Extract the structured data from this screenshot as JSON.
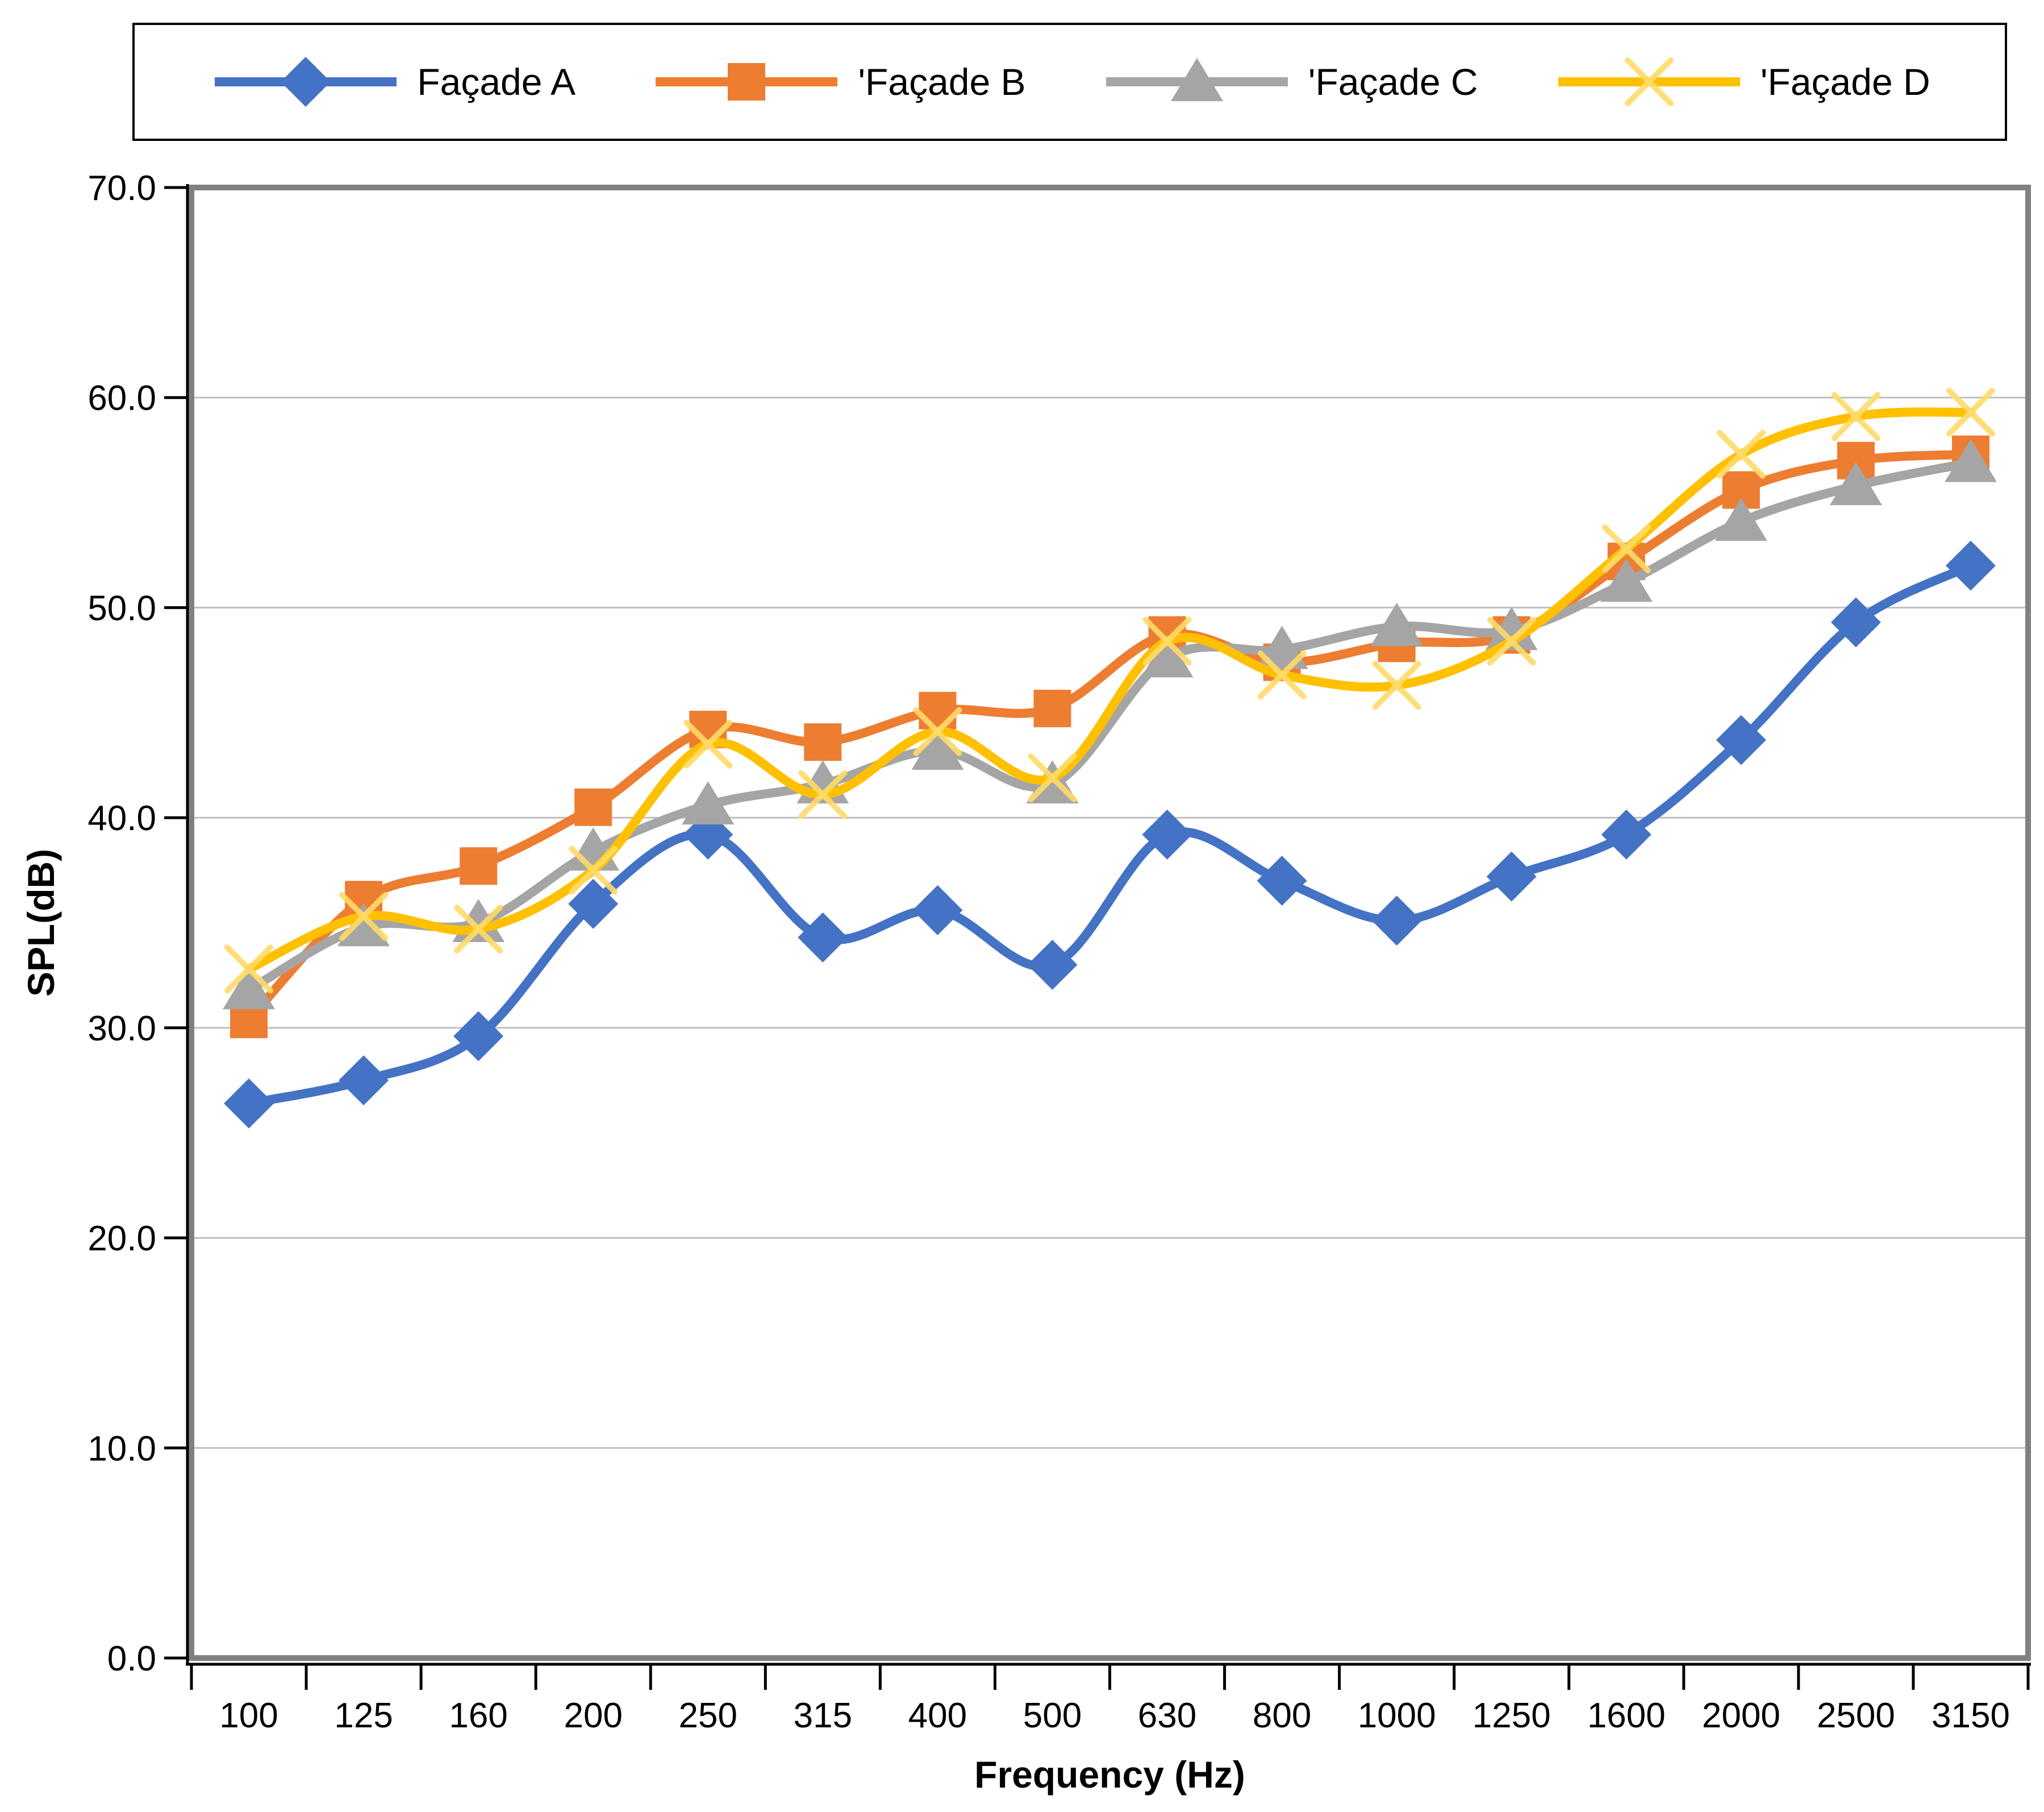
{
  "chart_data": {
    "type": "line",
    "smooth": true,
    "x": [
      "100",
      "125",
      "160",
      "200",
      "250",
      "315",
      "400",
      "500",
      "630",
      "800",
      "1000",
      "1250",
      "1600",
      "2000",
      "2500",
      "3150"
    ],
    "series": [
      {
        "name": "Façade A",
        "color": "#4472C4",
        "marker": "diamond",
        "values": [
          26.4,
          27.5,
          29.6,
          35.9,
          39.2,
          34.3,
          35.6,
          33.0,
          39.2,
          37.0,
          35.1,
          37.2,
          39.2,
          43.7,
          49.3,
          52.0
        ]
      },
      {
        "name": "'Façade B",
        "color": "#ED7D31",
        "marker": "square",
        "values": [
          30.4,
          36.1,
          37.7,
          40.5,
          44.2,
          43.6,
          45.1,
          45.2,
          48.7,
          47.4,
          48.3,
          48.7,
          52.2,
          55.6,
          57.0,
          57.3
        ]
      },
      {
        "name": "'Façade C",
        "color": "#A5A5A5",
        "marker": "triangle",
        "values": [
          31.8,
          34.8,
          35.0,
          38.4,
          40.6,
          41.6,
          43.2,
          41.6,
          47.6,
          48.0,
          49.1,
          48.9,
          51.2,
          54.1,
          55.8,
          56.9
        ]
      },
      {
        "name": "'Façade D",
        "color": "#FFC000",
        "marker": "x",
        "marker_color": "#FFDB69",
        "values": [
          32.8,
          35.3,
          34.7,
          37.5,
          43.5,
          41.1,
          44.1,
          41.9,
          48.4,
          46.8,
          46.3,
          48.4,
          52.8,
          57.3,
          59.1,
          59.3
        ]
      }
    ],
    "title": "",
    "xlabel": "Frequency (Hz)",
    "ylabel": "SPL(dB)",
    "ylim": [
      0,
      70
    ],
    "ytick_step": 10,
    "ytick_decimals": 1,
    "grid": true,
    "legend_position": "top"
  },
  "colors": {
    "gridline": "#BFBFBF",
    "plot_border": "#808080",
    "axis_line": "#000000",
    "text": "#000000"
  }
}
